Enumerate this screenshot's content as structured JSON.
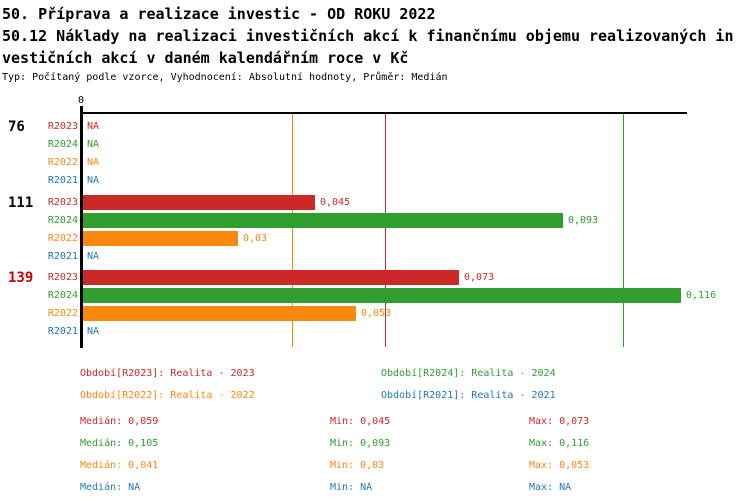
{
  "header": {
    "title_lines": [
      "50. Příprava a realizace investic - OD ROKU 2022",
      "50.12 Náklady na realizaci investičních akcí k finančnímu objemu realizovaných in",
      "vestičních akcí v daném kalendářním roce v Kč"
    ],
    "subtitle": "Typ: Počítaný podle vzorce, Vyhodnocení: Absolutní hodnoty, Průměr: Medián"
  },
  "colors": {
    "R2023": "#cc2828",
    "R2024": "#2f9e2f",
    "R2022": "#fc870f",
    "R2021": "#1f78b4",
    "axis": "#000000",
    "highlight_group_label": "#cc0000",
    "normal_group_label": "#000000"
  },
  "chart_data": {
    "type": "bar",
    "orientation": "horizontal",
    "origin_tick_label": "0",
    "xlim": [
      0,
      0.1175
    ],
    "na_text": "NA",
    "series_order": [
      "R2023",
      "R2024",
      "R2022",
      "R2021"
    ],
    "groups": [
      {
        "label": "76",
        "highlight": false,
        "rows": [
          {
            "series": "R2023",
            "value": null,
            "display": "NA"
          },
          {
            "series": "R2024",
            "value": null,
            "display": "NA"
          },
          {
            "series": "R2022",
            "value": null,
            "display": "NA"
          },
          {
            "series": "R2021",
            "value": null,
            "display": "NA"
          }
        ]
      },
      {
        "label": "111",
        "highlight": false,
        "rows": [
          {
            "series": "R2023",
            "value": 0.045,
            "display": "0,045"
          },
          {
            "series": "R2024",
            "value": 0.093,
            "display": "0,093"
          },
          {
            "series": "R2022",
            "value": 0.03,
            "display": "0,03"
          },
          {
            "series": "R2021",
            "value": null,
            "display": "NA"
          }
        ]
      },
      {
        "label": "139",
        "highlight": true,
        "rows": [
          {
            "series": "R2023",
            "value": 0.073,
            "display": "0,073"
          },
          {
            "series": "R2024",
            "value": 0.116,
            "display": "0,116"
          },
          {
            "series": "R2022",
            "value": 0.053,
            "display": "0,053"
          },
          {
            "series": "R2021",
            "value": null,
            "display": "NA"
          }
        ]
      }
    ],
    "median_lines": [
      {
        "series": "R2023",
        "value": 0.059
      },
      {
        "series": "R2024",
        "value": 0.105
      },
      {
        "series": "R2022",
        "value": 0.041
      }
    ]
  },
  "legend": {
    "items": [
      {
        "series": "R2023",
        "label": "Období[R2023]: Realita - 2023"
      },
      {
        "series": "R2024",
        "label": "Období[R2024]: Realita - 2024"
      },
      {
        "series": "R2022",
        "label": "Období[R2022]: Realita - 2022"
      },
      {
        "series": "R2021",
        "label": "Období[R2021]: Realita - 2021"
      }
    ]
  },
  "stats": {
    "median_prefix": "Medián: ",
    "min_prefix": "Min: ",
    "max_prefix": "Max: ",
    "rows": [
      {
        "series": "R2023",
        "median": "0,059",
        "min": "0,045",
        "max": "0,073"
      },
      {
        "series": "R2024",
        "median": "0,105",
        "min": "0,093",
        "max": "0,116"
      },
      {
        "series": "R2022",
        "median": "0,041",
        "min": "0,03",
        "max": "0,053"
      },
      {
        "series": "R2021",
        "median": "NA",
        "min": "NA",
        "max": "NA"
      }
    ]
  }
}
